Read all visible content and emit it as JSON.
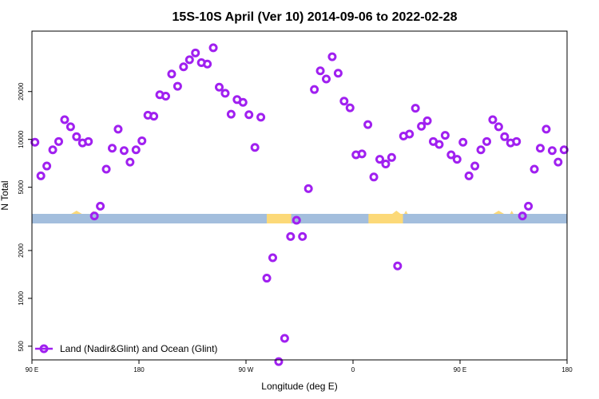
{
  "chart_data": {
    "type": "scatter",
    "title": "15S-10S April (Ver 10)   2014-09-06 to 2022-02-28",
    "xlabel": "Longitude (deg E)",
    "ylabel": "N Total",
    "x_ticks": [
      {
        "value": 90,
        "label": "90 E"
      },
      {
        "value": 180,
        "label": "180"
      },
      {
        "value": 270,
        "label": "90 W"
      },
      {
        "value": 360,
        "label": "0"
      },
      {
        "value": 450,
        "label": "90 E"
      },
      {
        "value": 540,
        "label": "180"
      }
    ],
    "y_ticks": [
      {
        "value": 500,
        "label": "500"
      },
      {
        "value": 1000,
        "label": "1000"
      },
      {
        "value": 2000,
        "label": "2000"
      },
      {
        "value": 5000,
        "label": "5000"
      },
      {
        "value": 10000,
        "label": "10000"
      },
      {
        "value": 20000,
        "label": "20000"
      }
    ],
    "xlim": [
      90,
      540
    ],
    "ylim": [
      410,
      48000
    ],
    "y_scale": "log",
    "legend_position": "bottom-left",
    "colors": {
      "series": "#a020f0",
      "ocean": "#a3bedd",
      "land": "#fcd978"
    },
    "series": [
      {
        "name": "Land (Nadir&Glint) and Ocean (Glint)",
        "x": [
          92.5,
          97.5,
          102.5,
          107.5,
          112.5,
          117.5,
          122.5,
          127.5,
          132.5,
          137.5,
          142.5,
          147.5,
          152.5,
          157.5,
          162.5,
          167.5,
          172.5,
          177.5,
          182.5,
          187.5,
          192.5,
          197.5,
          202.5,
          207.5,
          212.5,
          217.5,
          222.5,
          227.5,
          232.5,
          237.5,
          242.5,
          247.5,
          252.5,
          257.5,
          262.5,
          267.5,
          272.5,
          277.5,
          282.5,
          287.5,
          292.5,
          297.5,
          302.5,
          307.5,
          312.5,
          317.5,
          322.5,
          327.5,
          332.5,
          337.5,
          342.5,
          347.5,
          352.5,
          357.5,
          362.5,
          367.5,
          372.5,
          377.5,
          382.5,
          387.5,
          392.5,
          397.5,
          402.5,
          407.5,
          412.5,
          417.5,
          422.5,
          427.5,
          432.5,
          437.5,
          442.5,
          447.5,
          452.5,
          457.5,
          462.5,
          467.5,
          472.5,
          477.5,
          482.5,
          487.5,
          492.5,
          497.5,
          502.5,
          507.5,
          512.5,
          517.5,
          522.5,
          527.5,
          532.5,
          537.5
        ],
        "y": [
          9600,
          5900,
          6800,
          8600,
          9700,
          13300,
          12000,
          10400,
          9500,
          9700,
          3300,
          3800,
          6500,
          8800,
          11600,
          8500,
          7200,
          8600,
          9800,
          14200,
          14000,
          19100,
          18700,
          25800,
          21600,
          28600,
          31700,
          35000,
          30400,
          29800,
          37700,
          21300,
          19500,
          14400,
          17800,
          17100,
          14300,
          8900,
          13800,
          1340,
          1800,
          400,
          560,
          2450,
          3100,
          2450,
          4900,
          20600,
          27000,
          24000,
          33100,
          26100,
          17400,
          15800,
          8000,
          8100,
          12400,
          5800,
          7500,
          7000,
          7700,
          1600,
          10500,
          10800,
          15700,
          12100,
          13100,
          9700,
          9300,
          10600,
          8000,
          7500,
          9600,
          5900,
          6800,
          8600,
          9700,
          13300,
          12000,
          10400,
          9500,
          9700,
          3300,
          3800,
          6500,
          8800,
          11600,
          8500,
          7200,
          8600
        ]
      }
    ]
  }
}
